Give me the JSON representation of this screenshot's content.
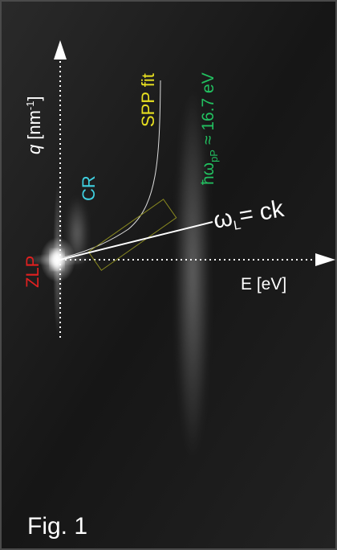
{
  "figure_label": "Fig. 1",
  "axes": {
    "y_label": {
      "symbol": "q",
      "unit": "[nm",
      "exponent": "-1",
      "close": "]"
    },
    "x_label": "E [eV]"
  },
  "annotations": {
    "zlp": "ZLP",
    "cr": "CR",
    "spp_fit": "SPP fit",
    "plasmon": {
      "symbol": "ħω",
      "subscript": "pP",
      "value": "≈ 16.7 eV"
    },
    "light_line": {
      "symbol": "ω",
      "subscript": "L",
      "rest": "= ck"
    }
  }
}
